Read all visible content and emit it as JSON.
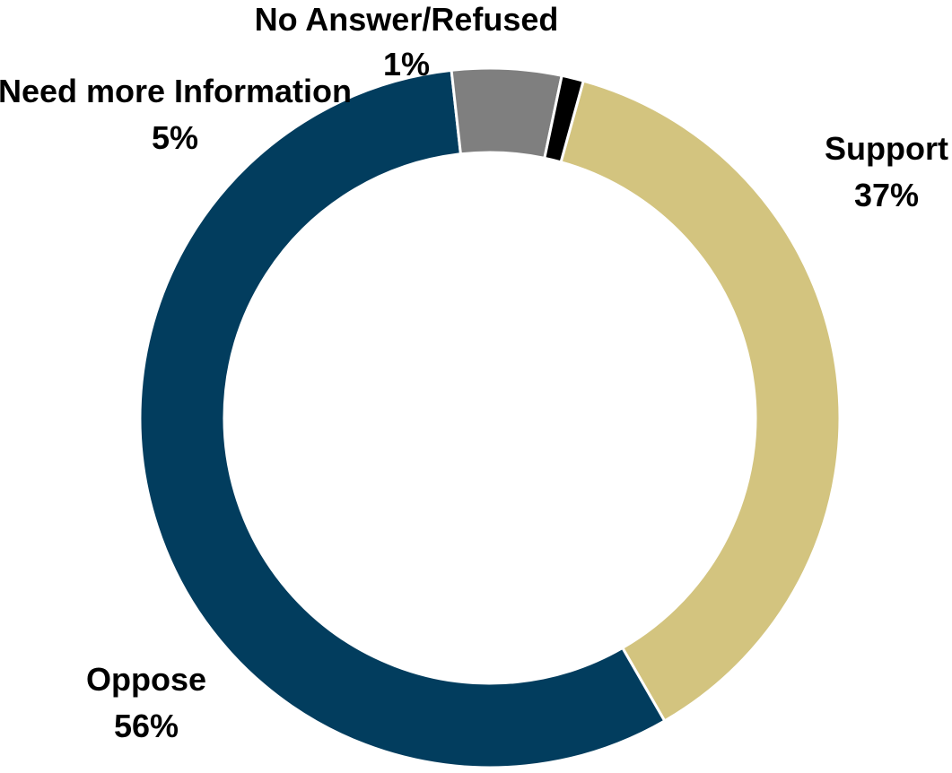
{
  "chart_data": {
    "type": "pie",
    "variant": "donut",
    "title": "",
    "categories": [
      "Support",
      "Oppose",
      "Need more Information",
      "No Answer/Refused"
    ],
    "values": [
      37,
      56,
      5,
      1
    ],
    "value_labels": [
      "37%",
      "56%",
      "5%",
      "1%"
    ],
    "colors": [
      "#d3c47f",
      "#023d5e",
      "#7f7f7f",
      "#000000"
    ],
    "unit": "%",
    "legend": "none (labels placed outside slices)"
  }
}
